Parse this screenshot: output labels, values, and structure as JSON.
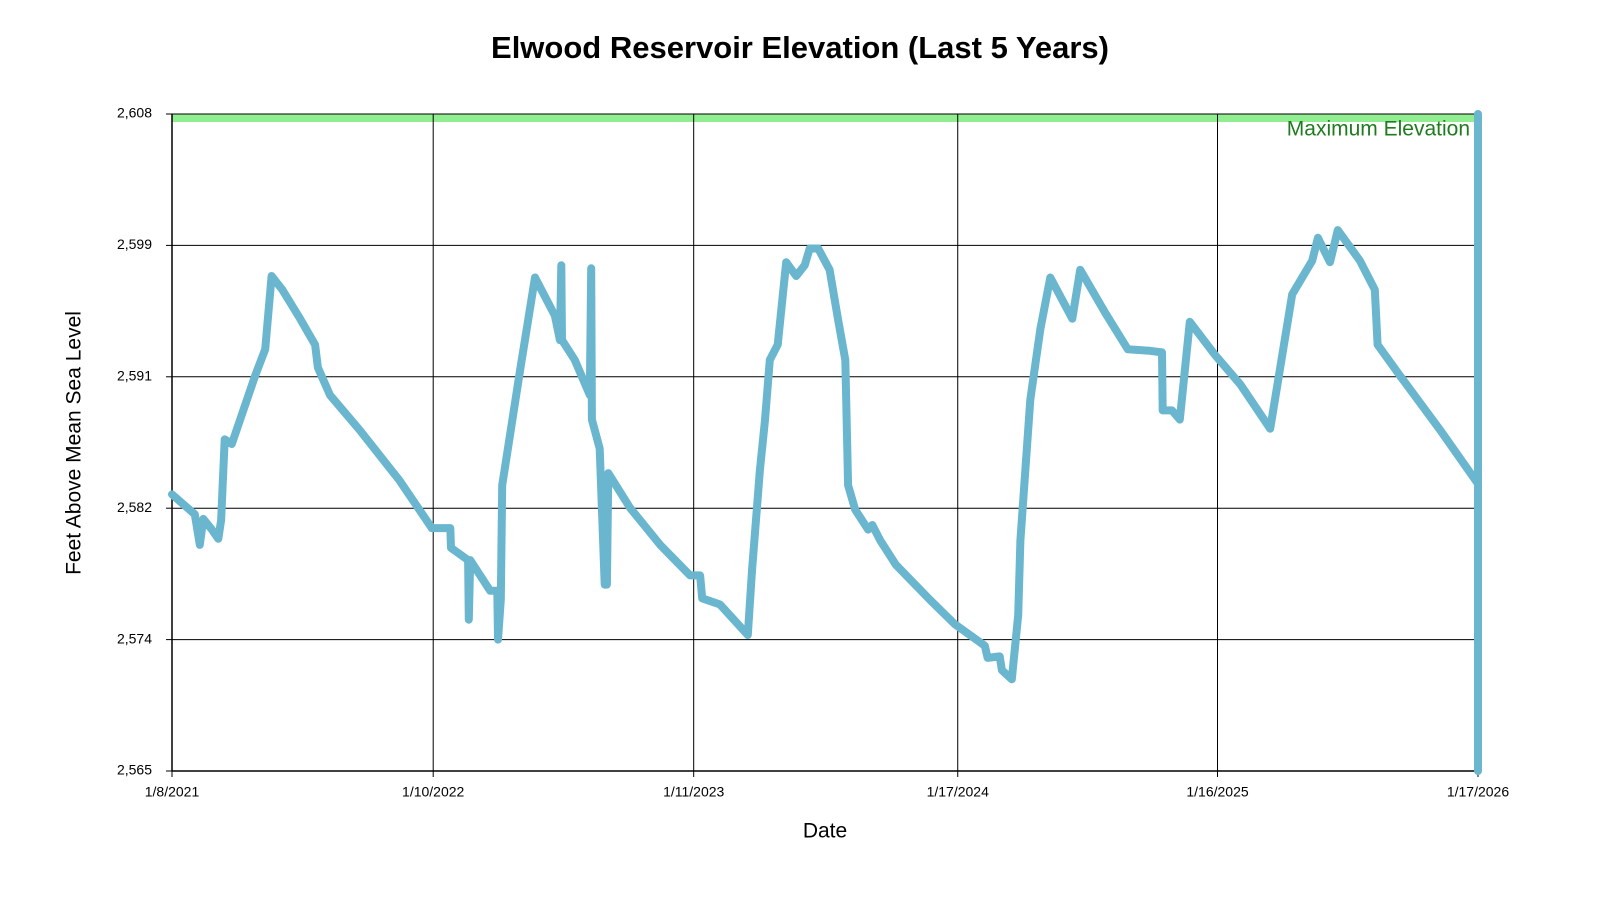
{
  "chart_data": {
    "type": "line",
    "title": "Elwood Reservoir Elevation (Last 5 Years)",
    "x_label": "Date",
    "y_label": "Feet Above Mean Sea Level",
    "color": "#6bb6cf",
    "grid": true,
    "xlim": [
      "2021-01-08",
      "2026-01-17"
    ],
    "xticks": [
      {
        "value": "2021-01-08",
        "label": "1/8/2021"
      },
      {
        "value": "2022-01-10",
        "label": "1/10/2022"
      },
      {
        "value": "2023-01-11",
        "label": "1/11/2023"
      },
      {
        "value": "2024-01-17",
        "label": "1/17/2024"
      },
      {
        "value": "2025-01-16",
        "label": "1/16/2025"
      },
      {
        "value": "2026-01-17",
        "label": "1/17/2026"
      }
    ],
    "ylim": [
      2565,
      2608
    ],
    "yticks": [
      {
        "value": 2565,
        "label": "2,565"
      },
      {
        "value": 2573.6,
        "label": "2,574"
      },
      {
        "value": 2582.2,
        "label": "2,582"
      },
      {
        "value": 2590.8,
        "label": "2,591"
      },
      {
        "value": 2599.4,
        "label": "2,599"
      },
      {
        "value": 2608,
        "label": "2,608"
      }
    ],
    "reference_line": {
      "value": 2608,
      "label": "Maximum Elevation",
      "color": "#90ee90",
      "label_color": "#1e7b1e"
    },
    "x": [
      "2021-01-08",
      "2021-02-09",
      "2021-02-16",
      "2021-02-21",
      "2021-03-05",
      "2021-03-14",
      "2021-03-18",
      "2021-03-23",
      "2021-04-02",
      "2021-05-05",
      "2021-05-19",
      "2021-05-28",
      "2021-06-12",
      "2021-07-07",
      "2021-07-28",
      "2021-08-01",
      "2021-08-18",
      "2021-09-29",
      "2021-11-24",
      "2022-01-08",
      "2022-02-03",
      "2022-02-04",
      "2022-02-28",
      "2022-03-01",
      "2022-03-03",
      "2022-03-31",
      "2022-04-10",
      "2022-04-11",
      "2022-04-15",
      "2022-04-17",
      "2022-05-12",
      "2022-06-02",
      "2022-06-30",
      "2022-07-07",
      "2022-07-09",
      "2022-07-10",
      "2022-07-28",
      "2022-08-18",
      "2022-08-20",
      "2022-08-21",
      "2022-09-01",
      "2022-09-08",
      "2022-09-11",
      "2022-09-13",
      "2022-10-14",
      "2022-11-25",
      "2023-01-06",
      "2023-01-20",
      "2023-01-23",
      "2023-02-17",
      "2023-03-28",
      "2023-04-03",
      "2023-04-14",
      "2023-04-21",
      "2023-04-28",
      "2023-05-09",
      "2023-05-21",
      "2023-06-04",
      "2023-06-16",
      "2023-06-23",
      "2023-07-05",
      "2023-07-21",
      "2023-08-02",
      "2023-08-12",
      "2023-08-16",
      "2023-08-26",
      "2023-09-13",
      "2023-09-19",
      "2023-09-30",
      "2023-10-22",
      "2023-12-09",
      "2024-01-13",
      "2024-02-24",
      "2024-02-28",
      "2024-03-16",
      "2024-03-19",
      "2024-04-02",
      "2024-04-11",
      "2024-04-14",
      "2024-04-28",
      "2024-05-12",
      "2024-05-26",
      "2024-06-26",
      "2024-07-07",
      "2024-08-11",
      "2024-09-12",
      "2024-10-13",
      "2024-10-30",
      "2024-10-31",
      "2024-11-13",
      "2024-11-24",
      "2024-12-08",
      "2025-01-13",
      "2025-02-17",
      "2025-03-31",
      "2025-05-01",
      "2025-05-29",
      "2025-06-06",
      "2025-06-23",
      "2025-07-04",
      "2025-08-04",
      "2025-08-25",
      "2025-08-29",
      "2025-09-29",
      "2025-11-25",
      "2026-01-17",
      "2026-01-17",
      "2026-01-17"
    ],
    "values": [
      2583.1,
      2581.8,
      2579.8,
      2581.5,
      2580.8,
      2580.2,
      2581.4,
      2586.7,
      2586.4,
      2590.9,
      2592.6,
      2597.4,
      2596.5,
      2594.6,
      2592.9,
      2591.4,
      2589.6,
      2587.3,
      2584.0,
      2580.9,
      2580.9,
      2579.6,
      2578.8,
      2574.9,
      2578.8,
      2576.8,
      2576.8,
      2573.6,
      2576.2,
      2583.7,
      2591.2,
      2597.3,
      2594.8,
      2593.2,
      2598.1,
      2593.2,
      2591.9,
      2589.6,
      2597.9,
      2588.0,
      2586.1,
      2577.2,
      2577.2,
      2584.5,
      2582.2,
      2579.8,
      2577.8,
      2577.8,
      2576.3,
      2575.9,
      2573.9,
      2578.1,
      2584.7,
      2587.9,
      2591.9,
      2592.9,
      2598.3,
      2597.4,
      2598.1,
      2599.2,
      2599.2,
      2597.8,
      2594.5,
      2591.9,
      2583.7,
      2582.1,
      2580.8,
      2581.1,
      2580.1,
      2578.5,
      2576.2,
      2574.6,
      2573.2,
      2572.4,
      2572.5,
      2571.6,
      2571.0,
      2575.2,
      2580.1,
      2589.3,
      2593.9,
      2597.3,
      2594.6,
      2597.8,
      2595.0,
      2592.6,
      2592.5,
      2592.4,
      2588.6,
      2588.6,
      2588.0,
      2594.4,
      2592.2,
      2590.3,
      2587.4,
      2596.2,
      2598.4,
      2599.9,
      2598.3,
      2600.4,
      2598.4,
      2596.5,
      2592.9,
      2590.9,
      2587.3,
      2583.8,
      2565,
      2608
    ]
  }
}
